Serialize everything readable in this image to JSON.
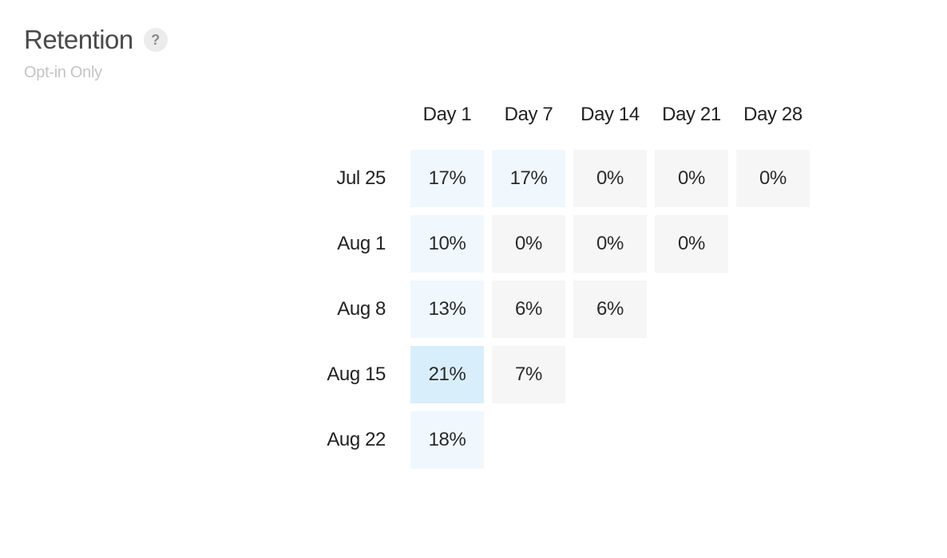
{
  "header": {
    "title": "Retention",
    "help_glyph": "?",
    "subtitle": "Opt-in Only"
  },
  "columns": [
    "Day 1",
    "Day 7",
    "Day 14",
    "Day 21",
    "Day 28"
  ],
  "rows": [
    {
      "label": "Jul 25",
      "values": [
        "17%",
        "17%",
        "0%",
        "0%",
        "0%"
      ],
      "levels": [
        17,
        17,
        0,
        0,
        0
      ]
    },
    {
      "label": "Aug 1",
      "values": [
        "10%",
        "0%",
        "0%",
        "0%"
      ],
      "levels": [
        10,
        0,
        0,
        0
      ]
    },
    {
      "label": "Aug 8",
      "values": [
        "13%",
        "6%",
        "6%"
      ],
      "levels": [
        13,
        6,
        6
      ]
    },
    {
      "label": "Aug 15",
      "values": [
        "21%",
        "7%"
      ],
      "levels": [
        21,
        7
      ]
    },
    {
      "label": "Aug 22",
      "values": [
        "18%"
      ],
      "levels": [
        18
      ]
    }
  ],
  "colors": {
    "zero_cell": "#f6f6f6",
    "low_cell": "#f0f8fe",
    "high_cell": "#d9eefb"
  }
}
